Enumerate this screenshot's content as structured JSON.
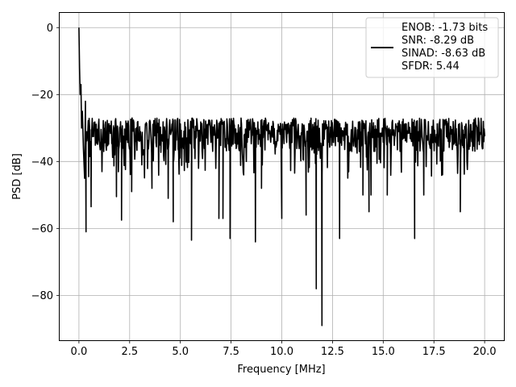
{
  "chart_data": {
    "type": "line",
    "title": "",
    "xlabel": "Frequency [MHz]",
    "ylabel": "PSD [dB]",
    "xlim": [
      -0.95,
      20.95
    ],
    "ylim": [
      -93.4,
      4.4
    ],
    "xticks": [
      0.0,
      2.5,
      5.0,
      7.5,
      10.0,
      12.5,
      15.0,
      17.5,
      20.0
    ],
    "xtick_labels": [
      "0.0",
      "2.5",
      "5.0",
      "7.5",
      "10.0",
      "12.5",
      "15.0",
      "17.5",
      "20.0"
    ],
    "yticks": [
      0,
      -20,
      -40,
      -60,
      -80
    ],
    "ytick_labels": [
      "0",
      "−20",
      "−40",
      "−60",
      "−80"
    ],
    "grid": true,
    "legend_position": "top-right",
    "series": [
      {
        "name": "ENOB: -1.73 bits\nSNR: -8.29 dB\nSINAD: -8.63 dB\nSFDR: 5.44",
        "color": "#000000",
        "noise_floor": {
          "upper": -27,
          "lower": -37,
          "typical_min": -45
        },
        "points": [
          [
            0.0,
            0.0
          ],
          [
            0.03,
            -12
          ],
          [
            0.06,
            -20
          ],
          [
            0.1,
            -17
          ],
          [
            0.13,
            -30
          ],
          [
            0.17,
            -25
          ],
          [
            0.22,
            -36
          ],
          [
            0.28,
            -45
          ],
          [
            0.32,
            -22
          ],
          [
            0.35,
            -61
          ],
          [
            0.6,
            -53.5
          ],
          [
            1.85,
            -50.5
          ],
          [
            2.1,
            -57.5
          ],
          [
            2.6,
            -49
          ],
          [
            3.6,
            -48
          ],
          [
            4.4,
            -51
          ],
          [
            4.65,
            -58
          ],
          [
            5.55,
            -63.5
          ],
          [
            6.9,
            -57
          ],
          [
            7.1,
            -57
          ],
          [
            7.45,
            -63
          ],
          [
            8.7,
            -64
          ],
          [
            9.0,
            -48
          ],
          [
            10.0,
            -57
          ],
          [
            11.2,
            -56
          ],
          [
            11.7,
            -78
          ],
          [
            11.98,
            -89
          ],
          [
            12.85,
            -63
          ],
          [
            14.0,
            -50
          ],
          [
            14.3,
            -55
          ],
          [
            14.4,
            -50
          ],
          [
            15.2,
            -50
          ],
          [
            16.55,
            -63
          ],
          [
            17.0,
            -50
          ],
          [
            18.8,
            -55
          ],
          [
            20.0,
            -32
          ]
        ]
      }
    ]
  }
}
